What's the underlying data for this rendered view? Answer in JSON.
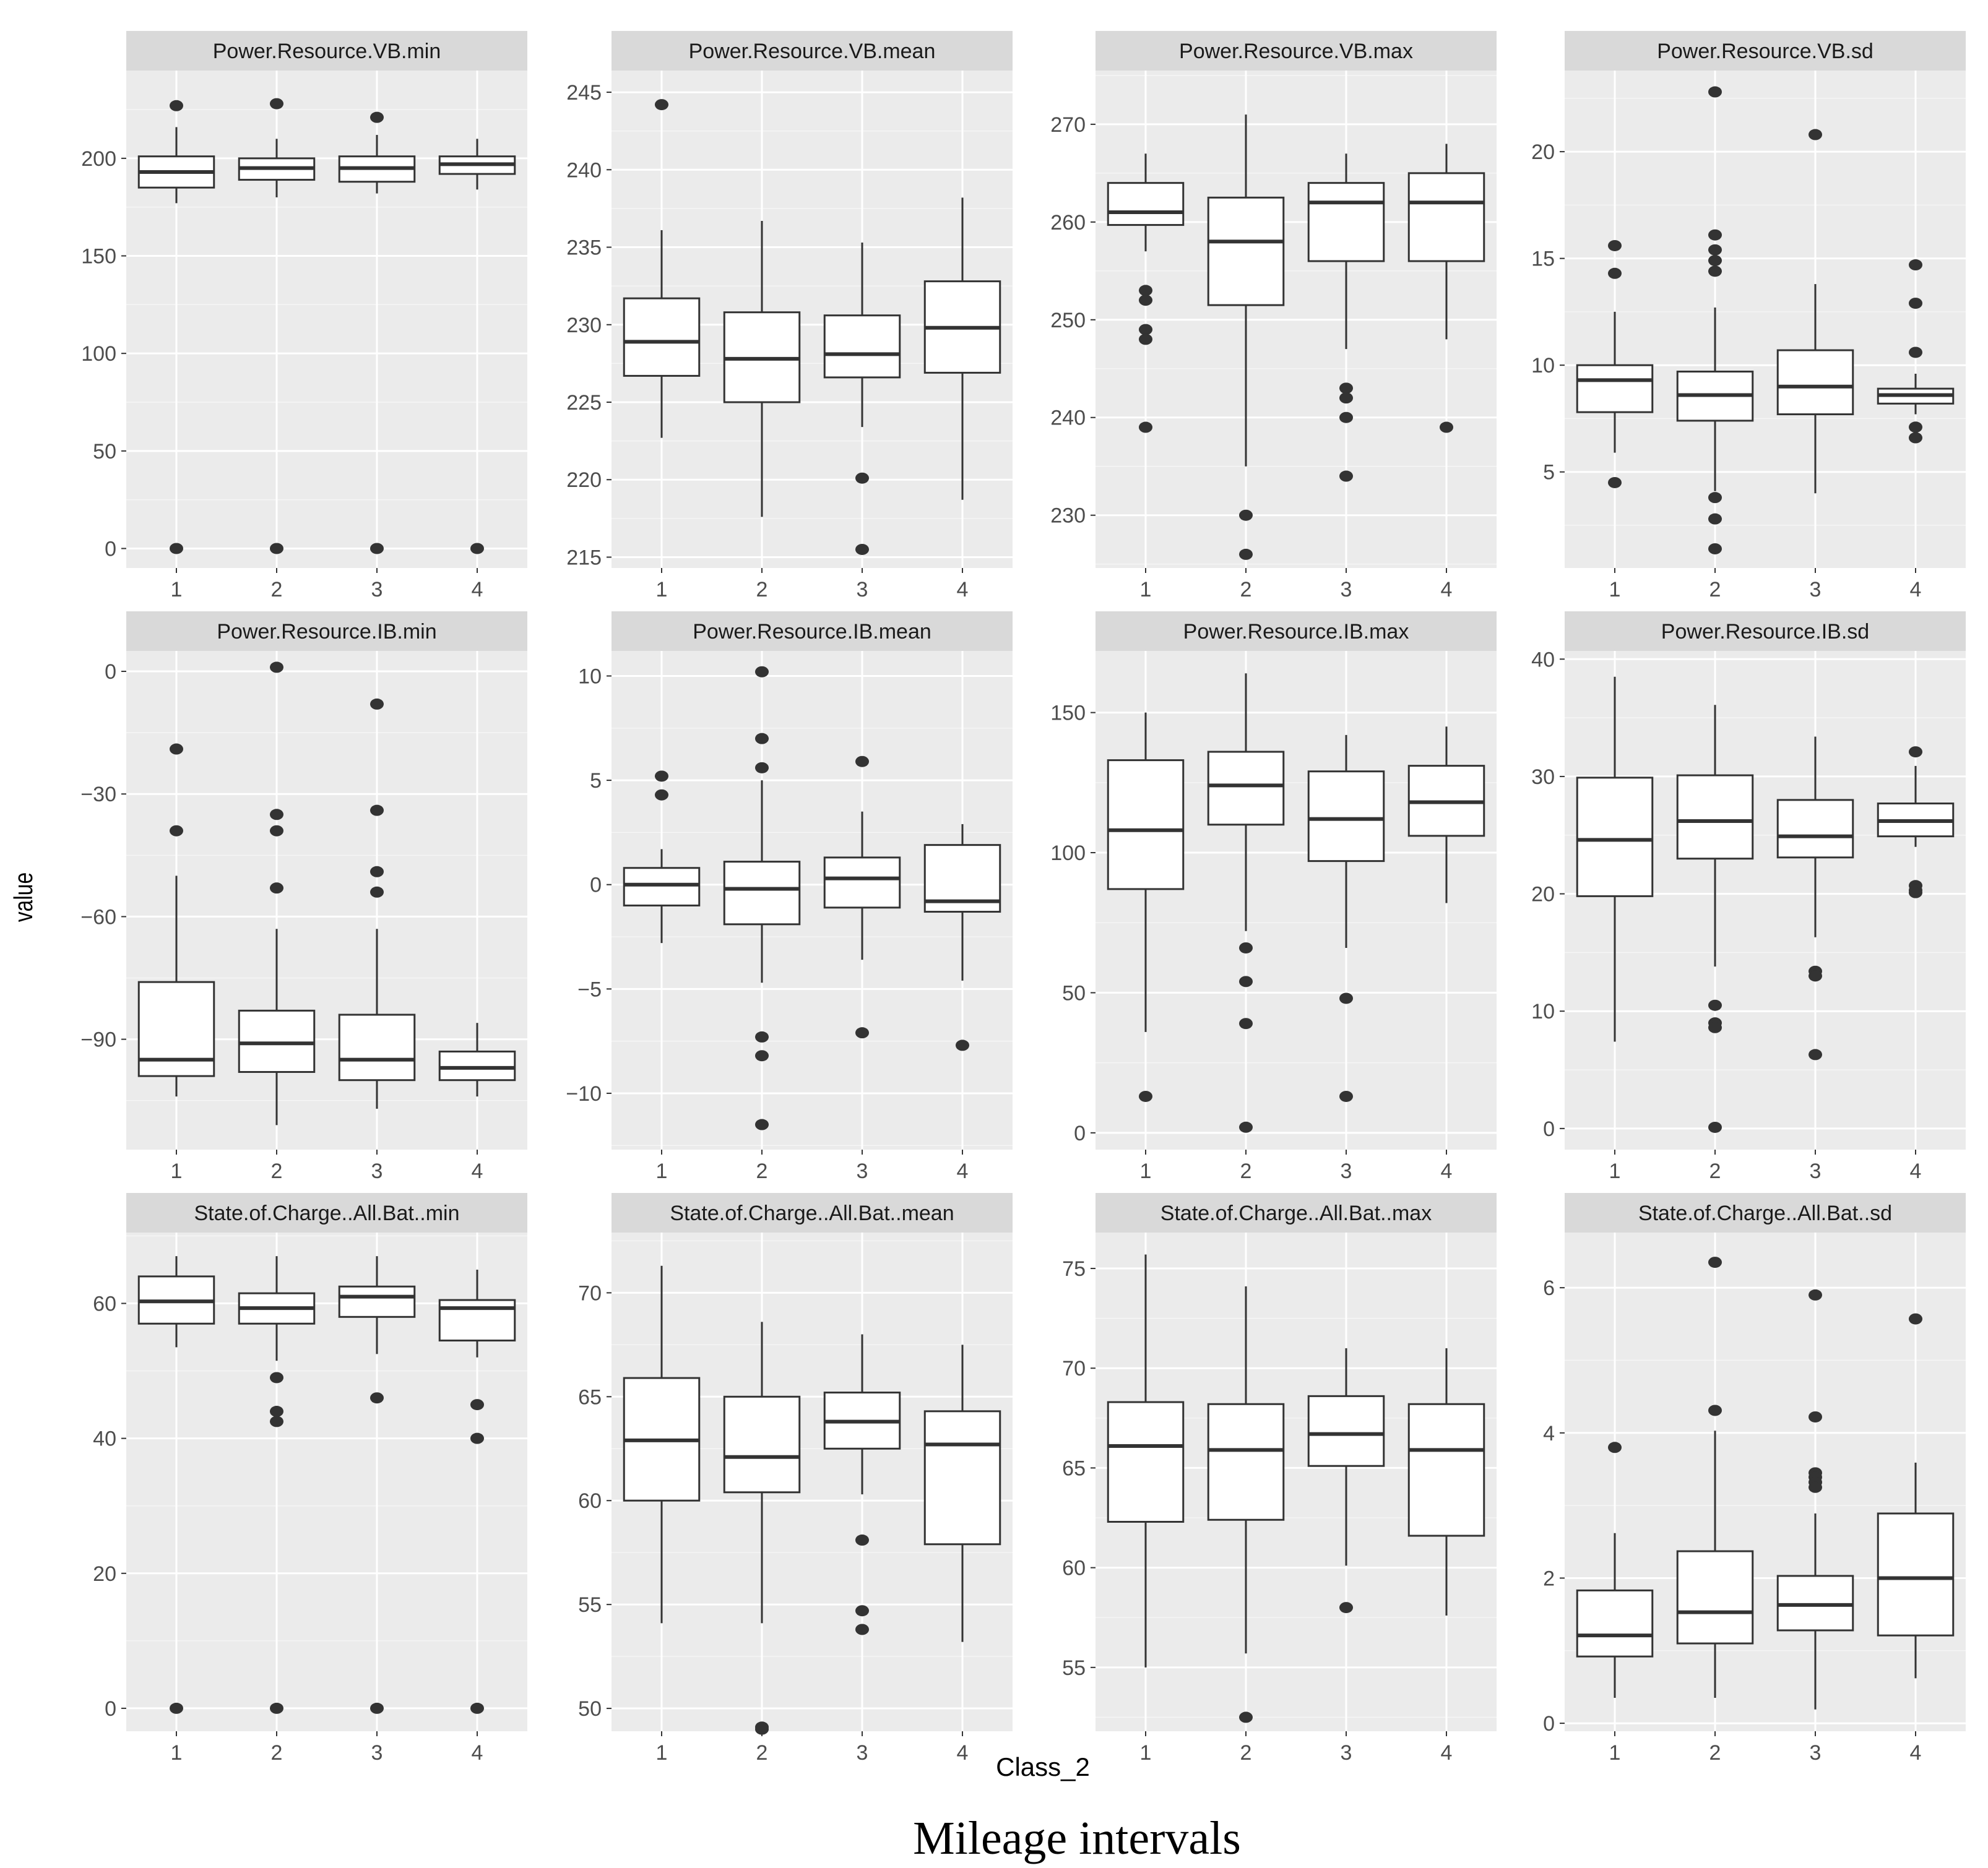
{
  "figure": {
    "xlabel": "Class_2",
    "ylabel": "value",
    "caption": "Mileage intervals"
  },
  "colors": {
    "panel_bg": "#ebebeb",
    "strip_bg": "#d9d9d9",
    "grid_major": "#ffffff",
    "box_fill": "#ffffff",
    "box_stroke": "#333333",
    "outlier": "#333333"
  },
  "chart_data": [
    {
      "type": "box",
      "title": "Power.Resource.VB.min",
      "categories": [
        "1",
        "2",
        "3",
        "4"
      ],
      "ylim": [
        -10,
        245
      ],
      "yticks": [
        0,
        50,
        100,
        150,
        200
      ],
      "boxes": [
        {
          "min": 177,
          "q1": 185,
          "median": 193,
          "q3": 201,
          "max": 216,
          "outliers": [
            227,
            0
          ]
        },
        {
          "min": 180,
          "q1": 189,
          "median": 195,
          "q3": 200,
          "max": 210,
          "outliers": [
            228,
            0
          ]
        },
        {
          "min": 182,
          "q1": 188,
          "median": 195,
          "q3": 201,
          "max": 212,
          "outliers": [
            221,
            0
          ]
        },
        {
          "min": 184,
          "q1": 192,
          "median": 197,
          "q3": 201,
          "max": 210,
          "outliers": [
            0
          ]
        }
      ]
    },
    {
      "type": "box",
      "title": "Power.Resource.VB.mean",
      "categories": [
        "1",
        "2",
        "3",
        "4"
      ],
      "ylim": [
        214.3,
        246.4
      ],
      "yticks": [
        215,
        220,
        225,
        230,
        235,
        240,
        245
      ],
      "boxes": [
        {
          "min": 222.7,
          "q1": 226.7,
          "median": 228.9,
          "q3": 231.7,
          "max": 236.1,
          "outliers": [
            244.2
          ]
        },
        {
          "min": 217.6,
          "q1": 225.0,
          "median": 227.8,
          "q3": 230.8,
          "max": 236.7,
          "outliers": []
        },
        {
          "min": 223.4,
          "q1": 226.6,
          "median": 228.1,
          "q3": 230.6,
          "max": 235.3,
          "outliers": [
            220.1,
            215.5
          ]
        },
        {
          "min": 218.7,
          "q1": 226.9,
          "median": 229.8,
          "q3": 232.8,
          "max": 238.2,
          "outliers": []
        }
      ]
    },
    {
      "type": "box",
      "title": "Power.Resource.VB.max",
      "categories": [
        "1",
        "2",
        "3",
        "4"
      ],
      "ylim": [
        224.6,
        275.5
      ],
      "yticks": [
        230,
        240,
        250,
        260,
        270
      ],
      "boxes": [
        {
          "min": 257,
          "q1": 259.7,
          "median": 261,
          "q3": 264,
          "max": 267,
          "outliers": [
            253,
            252,
            249,
            248,
            239
          ]
        },
        {
          "min": 235,
          "q1": 251.5,
          "median": 258,
          "q3": 262.5,
          "max": 271,
          "outliers": [
            230,
            226
          ]
        },
        {
          "min": 247,
          "q1": 256,
          "median": 262,
          "q3": 264,
          "max": 267,
          "outliers": [
            243,
            242,
            240,
            234
          ]
        },
        {
          "min": 248,
          "q1": 256,
          "median": 262,
          "q3": 265,
          "max": 268,
          "outliers": [
            239
          ]
        }
      ]
    },
    {
      "type": "box",
      "title": "Power.Resource.VB.sd",
      "categories": [
        "1",
        "2",
        "3",
        "4"
      ],
      "ylim": [
        0.5,
        23.8
      ],
      "yticks": [
        5,
        10,
        15,
        20
      ],
      "boxes": [
        {
          "min": 5.9,
          "q1": 7.8,
          "median": 9.3,
          "q3": 10.0,
          "max": 12.5,
          "outliers": [
            15.6,
            14.3,
            4.5
          ]
        },
        {
          "min": 4.1,
          "q1": 7.4,
          "median": 8.6,
          "q3": 9.7,
          "max": 12.7,
          "outliers": [
            22.8,
            16.1,
            15.4,
            14.9,
            14.4,
            3.8,
            2.8,
            1.4
          ]
        },
        {
          "min": 4.0,
          "q1": 7.7,
          "median": 9.0,
          "q3": 10.7,
          "max": 13.8,
          "outliers": [
            20.8
          ]
        },
        {
          "min": 7.7,
          "q1": 8.2,
          "median": 8.6,
          "q3": 8.9,
          "max": 9.6,
          "outliers": [
            14.7,
            12.9,
            10.6,
            7.1,
            6.6
          ]
        }
      ]
    },
    {
      "type": "box",
      "title": "Power.Resource.IB.min",
      "categories": [
        "1",
        "2",
        "3",
        "4"
      ],
      "ylim": [
        -117,
        5
      ],
      "yticks": [
        0,
        -30,
        -60,
        -90
      ],
      "boxes": [
        {
          "min": -104,
          "q1": -99,
          "median": -95,
          "q3": -76,
          "max": -50,
          "outliers": [
            -19,
            -39
          ]
        },
        {
          "min": -111,
          "q1": -98,
          "median": -91,
          "q3": -83,
          "max": -63,
          "outliers": [
            1,
            -35,
            -39,
            -53
          ]
        },
        {
          "min": -107,
          "q1": -100,
          "median": -95,
          "q3": -84,
          "max": -63,
          "outliers": [
            -8,
            -34,
            -49,
            -54
          ]
        },
        {
          "min": -104,
          "q1": -100,
          "median": -97,
          "q3": -93,
          "max": -86,
          "outliers": []
        }
      ]
    },
    {
      "type": "box",
      "title": "Power.Resource.IB.mean",
      "categories": [
        "1",
        "2",
        "3",
        "4"
      ],
      "ylim": [
        -12.7,
        11.2
      ],
      "yticks": [
        10,
        5,
        0,
        -5,
        -10
      ],
      "boxes": [
        {
          "min": -2.8,
          "q1": -1.0,
          "median": 0.0,
          "q3": 0.8,
          "max": 1.7,
          "outliers": [
            5.2,
            4.3
          ]
        },
        {
          "min": -4.7,
          "q1": -1.9,
          "median": -0.2,
          "q3": 1.1,
          "max": 5.0,
          "outliers": [
            10.2,
            7.0,
            5.6,
            -7.3,
            -8.2,
            -11.5
          ]
        },
        {
          "min": -3.6,
          "q1": -1.1,
          "median": 0.3,
          "q3": 1.3,
          "max": 3.5,
          "outliers": [
            5.9,
            -7.1
          ]
        },
        {
          "min": -4.6,
          "q1": -1.3,
          "median": -0.8,
          "q3": 1.9,
          "max": 2.9,
          "outliers": [
            -7.7
          ]
        }
      ]
    },
    {
      "type": "box",
      "title": "Power.Resource.IB.max",
      "categories": [
        "1",
        "2",
        "3",
        "4"
      ],
      "ylim": [
        -6,
        172
      ],
      "yticks": [
        0,
        50,
        100,
        150
      ],
      "boxes": [
        {
          "min": 36,
          "q1": 87,
          "median": 108,
          "q3": 133,
          "max": 150,
          "outliers": [
            13
          ]
        },
        {
          "min": 72,
          "q1": 110,
          "median": 124,
          "q3": 136,
          "max": 164,
          "outliers": [
            66,
            54,
            39,
            2
          ]
        },
        {
          "min": 66,
          "q1": 97,
          "median": 112,
          "q3": 129,
          "max": 142,
          "outliers": [
            48,
            13
          ]
        },
        {
          "min": 82,
          "q1": 106,
          "median": 118,
          "q3": 131,
          "max": 145,
          "outliers": []
        }
      ]
    },
    {
      "type": "box",
      "title": "Power.Resource.IB.sd",
      "categories": [
        "1",
        "2",
        "3",
        "4"
      ],
      "ylim": [
        -1.8,
        40.7
      ],
      "yticks": [
        0,
        10,
        20,
        30,
        40
      ],
      "boxes": [
        {
          "min": 7.4,
          "q1": 19.8,
          "median": 24.6,
          "q3": 29.9,
          "max": 38.5,
          "outliers": []
        },
        {
          "min": 13.8,
          "q1": 23.0,
          "median": 26.2,
          "q3": 30.1,
          "max": 36.1,
          "outliers": [
            10.5,
            9.0,
            8.6,
            0.1
          ]
        },
        {
          "min": 16.3,
          "q1": 23.1,
          "median": 24.9,
          "q3": 28.0,
          "max": 33.4,
          "outliers": [
            13.4,
            13.0,
            6.3
          ]
        },
        {
          "min": 24.0,
          "q1": 24.9,
          "median": 26.2,
          "q3": 27.7,
          "max": 30.9,
          "outliers": [
            32.1,
            20.7,
            20.3,
            20.1
          ]
        }
      ]
    },
    {
      "type": "box",
      "title": "State.of.Charge..All.Bat..min",
      "categories": [
        "1",
        "2",
        "3",
        "4"
      ],
      "ylim": [
        -3.4,
        70.5
      ],
      "yticks": [
        0,
        20,
        40,
        60
      ],
      "boxes": [
        {
          "min": 53.5,
          "q1": 57,
          "median": 60.3,
          "q3": 64,
          "max": 67,
          "outliers": [
            0
          ]
        },
        {
          "min": 51.5,
          "q1": 57,
          "median": 59.3,
          "q3": 61.5,
          "max": 67,
          "outliers": [
            49,
            44,
            42.5,
            0
          ]
        },
        {
          "min": 52.5,
          "q1": 58,
          "median": 61,
          "q3": 62.5,
          "max": 67,
          "outliers": [
            46,
            0
          ]
        },
        {
          "min": 52,
          "q1": 54.5,
          "median": 59.3,
          "q3": 60.5,
          "max": 65,
          "outliers": [
            45,
            40,
            0
          ]
        }
      ]
    },
    {
      "type": "box",
      "title": "State.of.Charge..All.Bat..mean",
      "categories": [
        "1",
        "2",
        "3",
        "4"
      ],
      "ylim": [
        48.9,
        72.9
      ],
      "yticks": [
        50,
        55,
        60,
        65,
        70
      ],
      "boxes": [
        {
          "min": 54.1,
          "q1": 60.0,
          "median": 62.9,
          "q3": 65.9,
          "max": 71.3,
          "outliers": []
        },
        {
          "min": 54.1,
          "q1": 60.4,
          "median": 62.1,
          "q3": 65.0,
          "max": 68.6,
          "outliers": [
            49.1,
            49.0
          ]
        },
        {
          "min": 60.3,
          "q1": 62.5,
          "median": 63.8,
          "q3": 65.2,
          "max": 68.0,
          "outliers": [
            58.1,
            54.7,
            53.8
          ]
        },
        {
          "min": 53.2,
          "q1": 57.9,
          "median": 62.7,
          "q3": 64.3,
          "max": 67.5,
          "outliers": []
        }
      ]
    },
    {
      "type": "box",
      "title": "State.of.Charge..All.Bat..max",
      "categories": [
        "1",
        "2",
        "3",
        "4"
      ],
      "ylim": [
        51.8,
        76.8
      ],
      "yticks": [
        55,
        60,
        65,
        70,
        75
      ],
      "boxes": [
        {
          "min": 55.0,
          "q1": 62.3,
          "median": 66.1,
          "q3": 68.3,
          "max": 75.7,
          "outliers": []
        },
        {
          "min": 55.7,
          "q1": 62.4,
          "median": 65.9,
          "q3": 68.2,
          "max": 74.1,
          "outliers": [
            52.5
          ]
        },
        {
          "min": 60.1,
          "q1": 65.1,
          "median": 66.7,
          "q3": 68.6,
          "max": 71.0,
          "outliers": [
            58.0
          ]
        },
        {
          "min": 57.6,
          "q1": 61.6,
          "median": 65.9,
          "q3": 68.2,
          "max": 71.0,
          "outliers": []
        }
      ]
    },
    {
      "type": "box",
      "title": "State.of.Charge..All.Bat..sd",
      "categories": [
        "1",
        "2",
        "3",
        "4"
      ],
      "ylim": [
        -0.11,
        6.76
      ],
      "yticks": [
        0,
        2,
        4,
        6
      ],
      "boxes": [
        {
          "min": 0.35,
          "q1": 0.92,
          "median": 1.21,
          "q3": 1.83,
          "max": 2.62,
          "outliers": [
            3.8
          ]
        },
        {
          "min": 0.35,
          "q1": 1.1,
          "median": 1.53,
          "q3": 2.37,
          "max": 4.03,
          "outliers": [
            6.35,
            4.31
          ]
        },
        {
          "min": 0.19,
          "q1": 1.28,
          "median": 1.63,
          "q3": 2.03,
          "max": 2.89,
          "outliers": [
            5.9,
            4.22,
            3.45,
            3.39,
            3.32,
            3.25
          ]
        },
        {
          "min": 0.62,
          "q1": 1.21,
          "median": 2.0,
          "q3": 2.89,
          "max": 3.59,
          "outliers": [
            5.57
          ]
        }
      ]
    }
  ]
}
